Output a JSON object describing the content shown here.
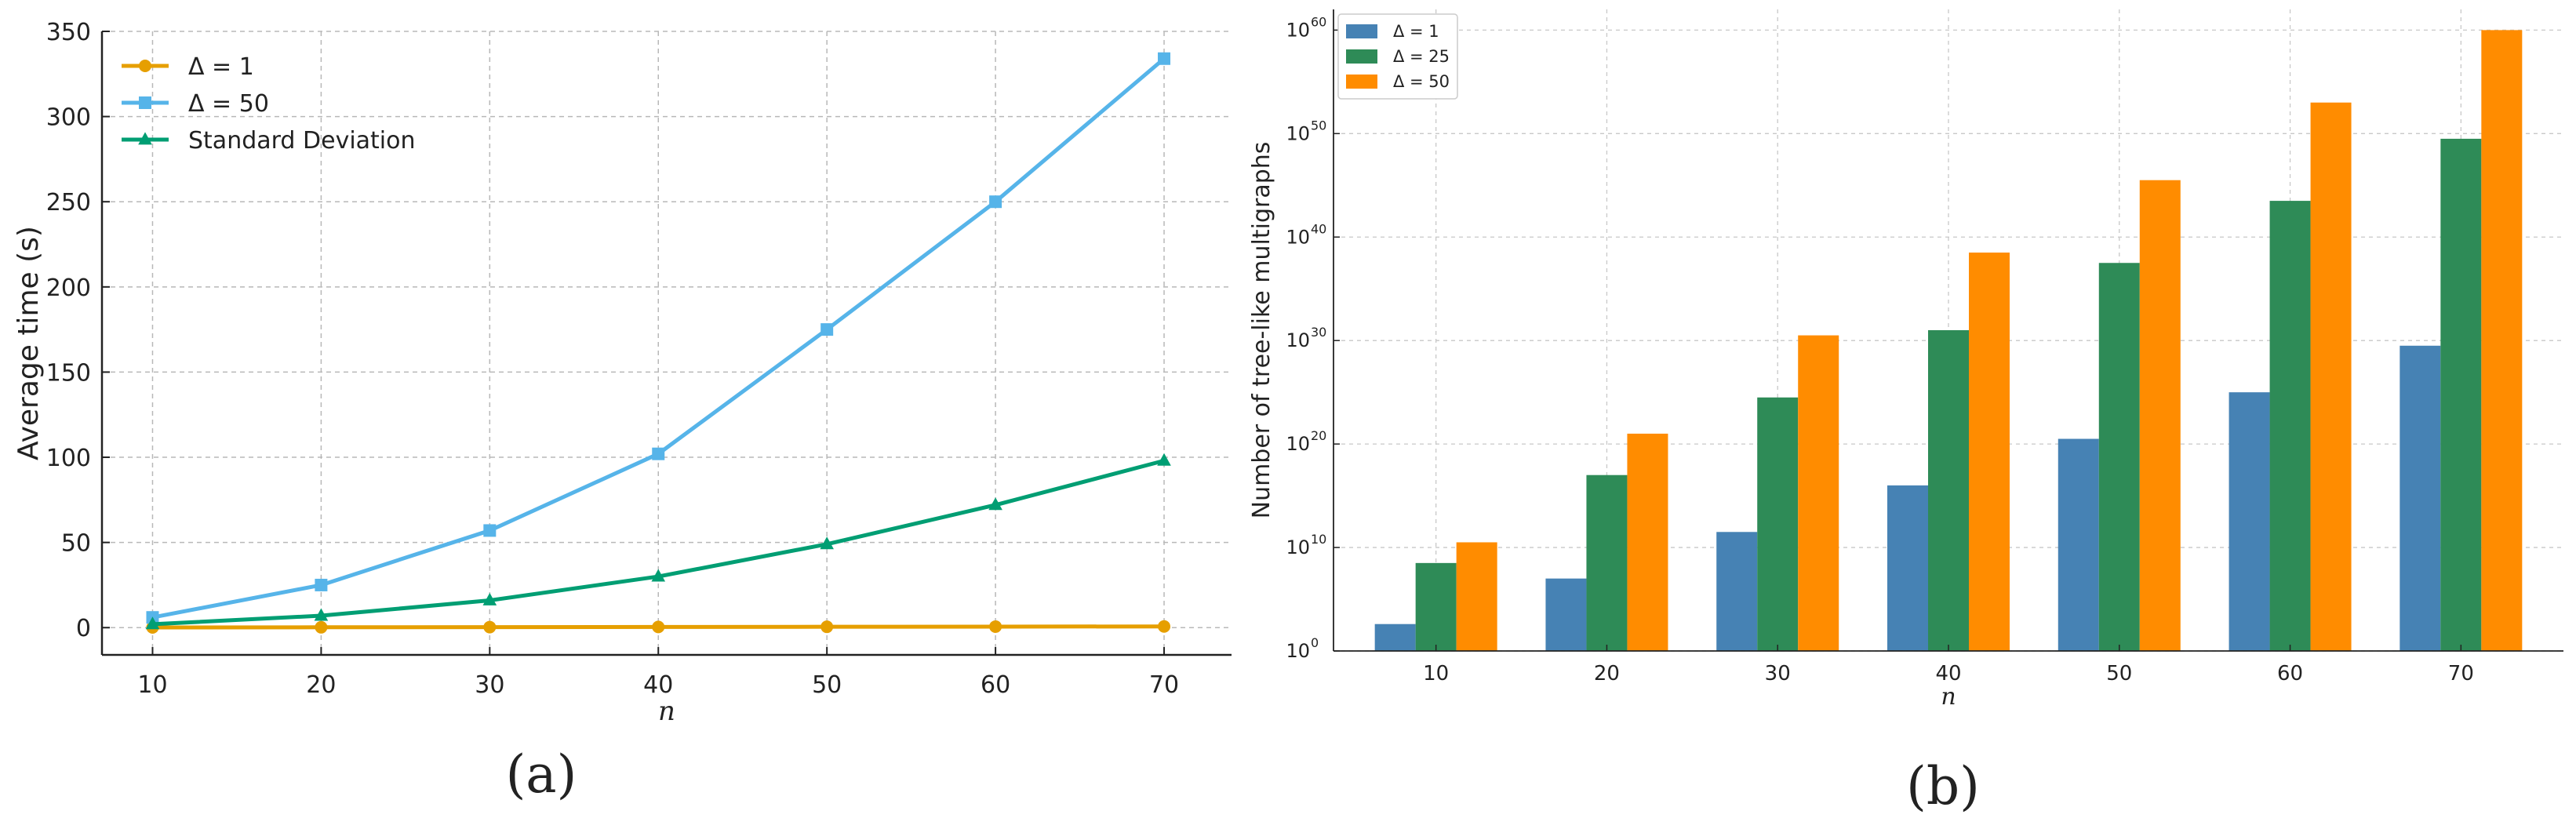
{
  "chart_data": [
    {
      "type": "line",
      "panel_label": "(a)",
      "xlabel": "n",
      "ylabel": "Average time (s)",
      "x": [
        10,
        20,
        30,
        40,
        50,
        60,
        70
      ],
      "xlim": [
        7,
        74
      ],
      "ylim": [
        -16,
        350
      ],
      "xticks": [
        "10",
        "20",
        "30",
        "40",
        "50",
        "60",
        "70"
      ],
      "yticks": [
        "0",
        "50",
        "100",
        "150",
        "200",
        "250",
        "300",
        "350"
      ],
      "grid": true,
      "legend_position": "top-left",
      "series": [
        {
          "name": "Δ = 1",
          "color": "#E69F00",
          "marker": "circle",
          "values": [
            0.1,
            0.2,
            0.3,
            0.4,
            0.5,
            0.6,
            0.7
          ]
        },
        {
          "name": "Δ = 50",
          "color": "#56B4E9",
          "marker": "square",
          "values": [
            6,
            25,
            57,
            102,
            175,
            250,
            334
          ]
        },
        {
          "name": "Standard Deviation",
          "color": "#009E73",
          "marker": "triangle",
          "values": [
            2,
            7,
            16,
            30,
            49,
            72,
            98
          ]
        }
      ]
    },
    {
      "type": "bar",
      "panel_label": "(b)",
      "xlabel": "n",
      "ylabel": "Number of tree-like multigraphs",
      "scale": "log",
      "categories": [
        "10",
        "20",
        "30",
        "40",
        "50",
        "60",
        "70"
      ],
      "ylim_exponent": [
        0,
        62
      ],
      "yticks": [
        {
          "base": "10",
          "exp": "0"
        },
        {
          "base": "10",
          "exp": "10"
        },
        {
          "base": "10",
          "exp": "20"
        },
        {
          "base": "10",
          "exp": "30"
        },
        {
          "base": "10",
          "exp": "40"
        },
        {
          "base": "10",
          "exp": "50"
        },
        {
          "base": "10",
          "exp": "60"
        }
      ],
      "grid": true,
      "legend_position": "top-left",
      "series": [
        {
          "name": "Δ = 1",
          "color": "#4682B4",
          "log10_values": [
            2.6,
            7,
            11.5,
            16,
            20.5,
            25,
            29.5
          ]
        },
        {
          "name": "Δ = 25",
          "color": "#2E8B57",
          "log10_values": [
            8.5,
            17,
            24.5,
            31,
            37.5,
            43.5,
            49.5
          ]
        },
        {
          "name": "Δ = 50",
          "color": "#FF8C00",
          "log10_values": [
            10.5,
            21,
            30.5,
            38.5,
            45.5,
            53,
            60
          ]
        }
      ]
    }
  ]
}
